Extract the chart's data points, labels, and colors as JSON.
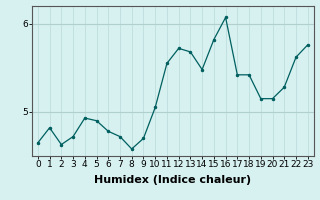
{
  "x": [
    0,
    1,
    2,
    3,
    4,
    5,
    6,
    7,
    8,
    9,
    10,
    11,
    12,
    13,
    14,
    15,
    16,
    17,
    18,
    19,
    20,
    21,
    22,
    23
  ],
  "y": [
    4.65,
    4.82,
    4.63,
    4.72,
    4.93,
    4.9,
    4.78,
    4.72,
    4.58,
    4.7,
    5.05,
    5.55,
    5.72,
    5.68,
    5.48,
    5.82,
    6.07,
    5.42,
    5.42,
    5.15,
    5.15,
    5.28,
    5.62,
    5.76
  ],
  "line_color": "#006060",
  "marker_color": "#006060",
  "bg_color": "#d7f0f0",
  "grid_color_v": "#c0dede",
  "grid_color_h": "#b0d0d0",
  "xlabel": "Humidex (Indice chaleur)",
  "ylim": [
    4.5,
    6.2
  ],
  "yticks": [
    5,
    6
  ],
  "xticks": [
    0,
    1,
    2,
    3,
    4,
    5,
    6,
    7,
    8,
    9,
    10,
    11,
    12,
    13,
    14,
    15,
    16,
    17,
    18,
    19,
    20,
    21,
    22,
    23
  ],
  "tick_fontsize": 6.5,
  "xlabel_fontsize": 8.0
}
